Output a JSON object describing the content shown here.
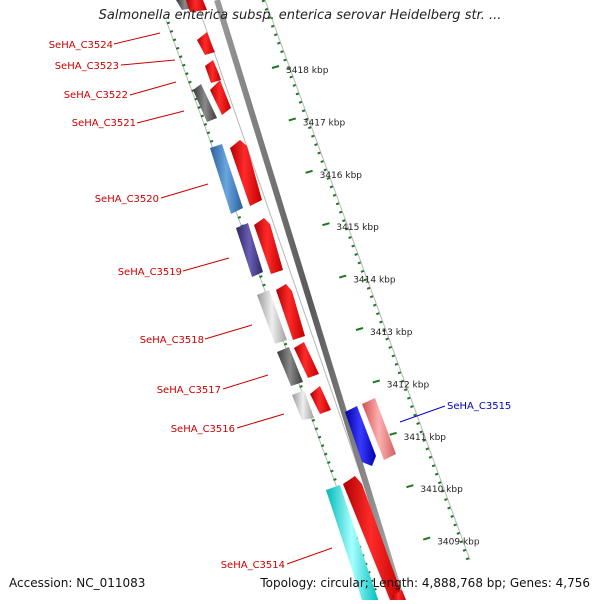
{
  "map": {
    "title": "Salmonella enterica subsp. enterica serovar Heidelberg str. ...",
    "accession": "Accession: NC_011083",
    "summary": "Topology: circular; Length: 4,888,768 bp; Genes: 4,756"
  },
  "kbp_labels": [
    "3418 kbp",
    "3417 kbp",
    "3416 kbp",
    "3415 kbp",
    "3414 kbp",
    "3413 kbp",
    "3412 kbp",
    "3411 kbp",
    "3410 kbp",
    "3409 kbp"
  ],
  "gene_labels_left": [
    "SeHA_C3524",
    "SeHA_C3523",
    "SeHA_C3522",
    "SeHA_C3521",
    "SeHA_C3520",
    "SeHA_C3519",
    "SeHA_C3518",
    "SeHA_C3517",
    "SeHA_C3516",
    "SeHA_C3514"
  ],
  "gene_labels_right": [
    "SeHA_C3515"
  ],
  "colors": {
    "backbone": "#808080",
    "tick": "#1a7a1a",
    "forward_gene": "#ff0000",
    "left_label": "#cc0000",
    "right_label": "#0000cc",
    "feature_blue": "#3f7fbf",
    "feature_purple": "#4a3f8f",
    "feature_cyan": "#00e5e5",
    "feature_gray_dark": "#666666",
    "feature_gray_light": "#c8c8c8",
    "reverse_gene": "#0000ee",
    "reverse_pink": "#f08080"
  }
}
